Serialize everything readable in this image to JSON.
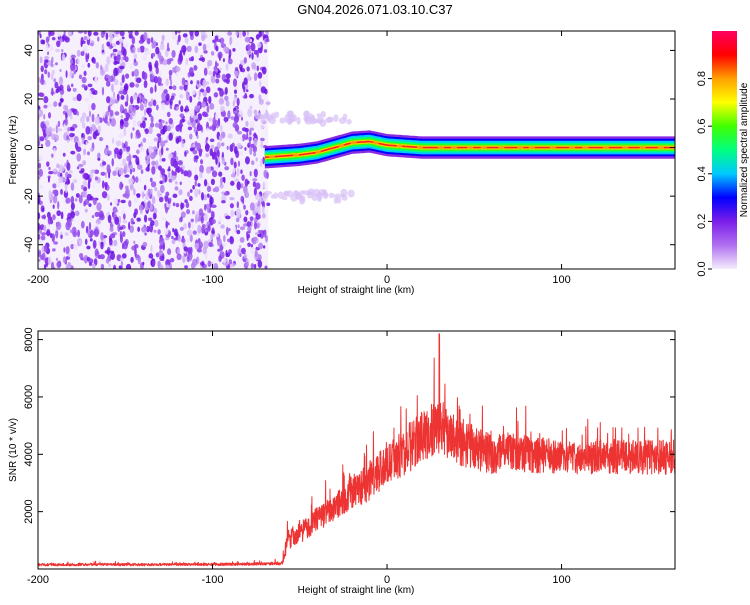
{
  "title": "GN04.2026.071.03.10.C37",
  "colors": {
    "snr_line": "#ee3333",
    "frame": "#000000",
    "background": "#ffffff"
  },
  "chart_data": [
    {
      "type": "heatmap",
      "xlabel": "Height of straight line (km)",
      "ylabel": "Frequency (Hz)",
      "xlim": [
        -200,
        165
      ],
      "ylim": [
        -50,
        48
      ],
      "xticks": [
        -200,
        -100,
        0,
        100
      ],
      "yticks": [
        -40,
        -20,
        0,
        20,
        40
      ],
      "grid": false,
      "colorbar": {
        "label": "Normalized spectral amplitude",
        "range": [
          0,
          1
        ],
        "ticks": [
          "0.0",
          "0.2",
          "0.4",
          "0.6",
          "0.8"
        ],
        "tick_values": [
          0.0,
          0.2,
          0.4,
          0.6,
          0.8
        ],
        "colormap": [
          "#f4ecfc",
          "#b070f0",
          "#7a1ee8",
          "#0000ff",
          "#00c8ff",
          "#00ff80",
          "#40ff00",
          "#ffff00",
          "#ffa000",
          "#ff0000",
          "#ff0060"
        ]
      },
      "noise_region_x": [
        -200,
        -68
      ],
      "signal_onset_x": -70,
      "ridge": {
        "x": [
          -70,
          -60,
          -50,
          -40,
          -30,
          -20,
          -10,
          0,
          20,
          40,
          60,
          80,
          100,
          120,
          140,
          165
        ],
        "frequency": [
          -4,
          -3.5,
          -3,
          -2,
          0,
          2,
          2.5,
          1,
          0,
          0,
          0,
          0,
          0,
          0,
          0,
          0
        ]
      },
      "sidebands": [
        {
          "x": [
            -75,
            -20
          ],
          "frequency": 12
        },
        {
          "x": [
            -75,
            -20
          ],
          "frequency": -20
        }
      ]
    },
    {
      "type": "line",
      "xlabel": "Height of straight line (km)",
      "ylabel": "SNR (10 * v/v)",
      "xlim": [
        -200,
        165
      ],
      "ylim": [
        0,
        8300
      ],
      "xticks": [
        -200,
        -100,
        0,
        100
      ],
      "yticks": [
        2000,
        4000,
        6000,
        8000
      ],
      "grid": false,
      "series": [
        {
          "x": [
            -200,
            -180,
            -160,
            -140,
            -120,
            -100,
            -80,
            -60,
            -57,
            -50,
            -40,
            -30,
            -20,
            -10,
            0,
            10,
            20,
            30,
            40,
            50,
            60,
            70,
            80,
            100,
            120,
            140,
            165
          ],
          "values": [
            150,
            150,
            160,
            150,
            160,
            160,
            170,
            200,
            1000,
            1300,
            1700,
            2200,
            2700,
            3000,
            3700,
            4100,
            4600,
            5000,
            4500,
            4200,
            4000,
            4100,
            4000,
            3900,
            3900,
            3900,
            3900
          ],
          "spread": [
            90,
            90,
            90,
            90,
            90,
            90,
            90,
            120,
            700,
            800,
            900,
            1000,
            1200,
            1300,
            1500,
            1700,
            1800,
            1900,
            1700,
            1500,
            1400,
            1300,
            1300,
            1200,
            1200,
            1200,
            1200
          ]
        }
      ],
      "max_peak": {
        "x": 30,
        "y": 8200
      }
    }
  ]
}
